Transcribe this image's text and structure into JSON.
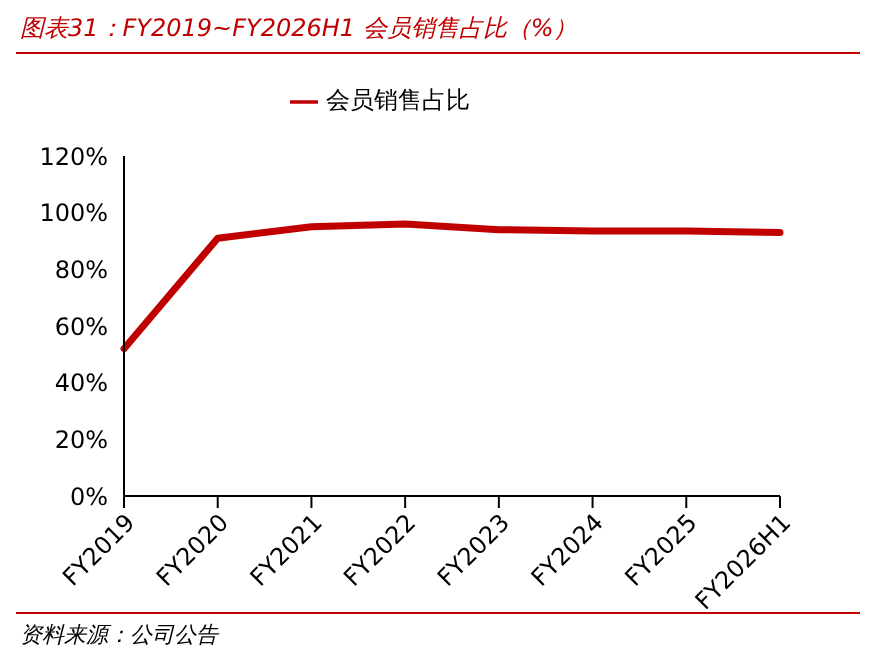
{
  "chart_data": {
    "type": "line",
    "title": "图表31：FY2019~FY2026H1 会员销售占比（%）",
    "annotations": [
      "资料来源：公司公告"
    ],
    "categories": [
      "FY2019",
      "FY2020",
      "FY2021",
      "FY2022",
      "FY2023",
      "FY2024",
      "FY2025",
      "FY2026H1"
    ],
    "series": [
      {
        "name": "会员销售占比",
        "color": "#c00000",
        "values": [
          52,
          91,
          95,
          96,
          94,
          93.5,
          93.5,
          93
        ]
      }
    ],
    "ylim": [
      0,
      120
    ],
    "yticks": [
      {
        "value": 0,
        "label": "0%"
      },
      {
        "value": 20,
        "label": "20%"
      },
      {
        "value": 40,
        "label": "40%"
      },
      {
        "value": 60,
        "label": "60%"
      },
      {
        "value": 80,
        "label": "80%"
      },
      {
        "value": 100,
        "label": "100%"
      },
      {
        "value": 120,
        "label": "120%"
      }
    ],
    "grid": false,
    "legend": "top",
    "marker": "none",
    "line_style": "solid"
  }
}
